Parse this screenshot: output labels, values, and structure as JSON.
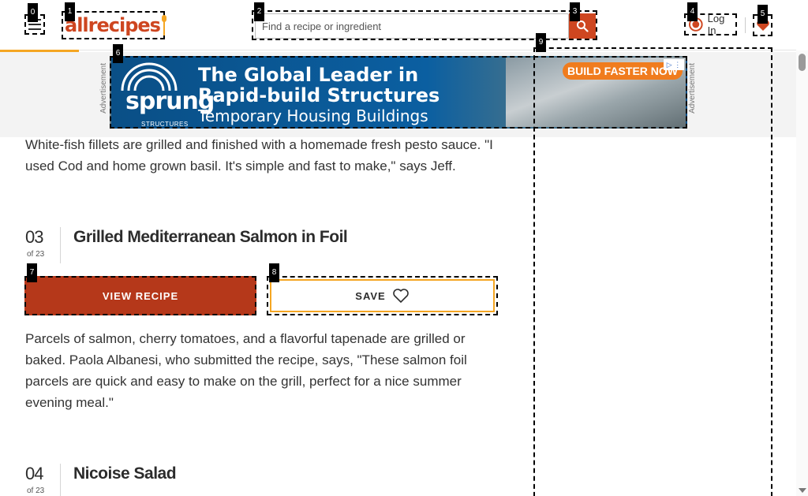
{
  "header": {
    "logo_text": "allrecipes",
    "search_placeholder": "Find a recipe or ingredient",
    "login_label": "Log In"
  },
  "ad": {
    "label_left": "Advertisement",
    "label_right": "Advertisement",
    "brand": "sprung",
    "brand_sub": "STRUCTURES",
    "line1": "The Global Leader in",
    "line2": "Rapid-build Structures",
    "line3": "Temporary Housing Buildings",
    "cta": "BUILD FASTER NOW"
  },
  "article": {
    "intro_paragraph": "White-fish fillets are grilled and finished with a homemade fresh pesto sauce. \"I used Cod and home grown basil. It's simple and fast to make,\" says Jeff.",
    "items": [
      {
        "number": "03",
        "of": "of 23",
        "title": "Grilled Mediterranean Salmon in Foil",
        "view_label": "VIEW RECIPE",
        "save_label": "SAVE",
        "description": "Parcels of salmon, cherry tomatoes, and a flavorful tapenade are grilled or baked. Paola Albanesi, who submitted the recipe, says, \"These salmon foil parcels are quick and easy to make on the grill, perfect for a nice summer evening meal.\""
      },
      {
        "number": "04",
        "of": "of 23",
        "title": "Nicoise Salad"
      }
    ]
  },
  "markers": [
    "0",
    "1",
    "2",
    "3",
    "4",
    "5",
    "6",
    "7",
    "8",
    "9"
  ],
  "colors": {
    "brand": "#ce4620",
    "accent": "#f5a623",
    "view_button": "#b5381a"
  }
}
